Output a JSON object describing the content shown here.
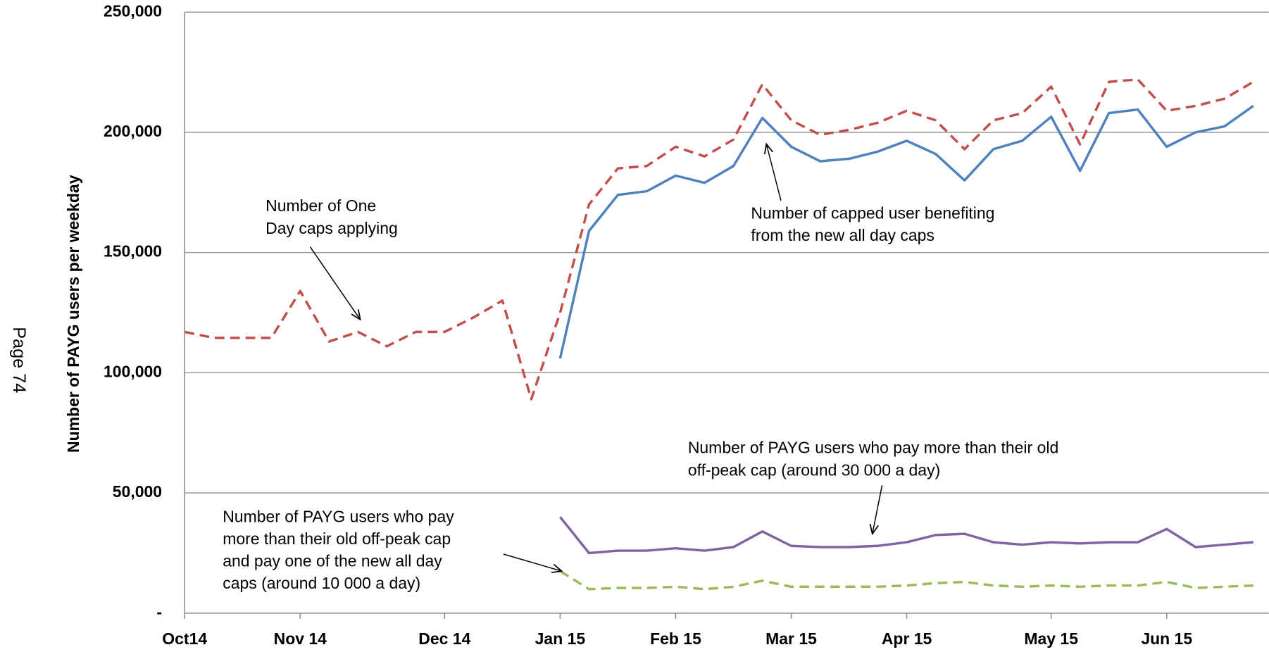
{
  "chart_data": {
    "type": "line",
    "page_label": "Page 74",
    "y_label": "Number of PAYG users per weekday",
    "categories": [
      "Oct14",
      null,
      null,
      null,
      "Nov 14",
      null,
      null,
      null,
      null,
      "Dec 14",
      null,
      null,
      null,
      "Jan 15",
      null,
      null,
      null,
      "Feb 15",
      null,
      null,
      null,
      "Mar 15",
      null,
      null,
      null,
      "Apr 15",
      null,
      null,
      null,
      null,
      "May 15",
      null,
      null,
      null,
      "Jun 15",
      null,
      null,
      null
    ],
    "series": [
      {
        "color": "#c0504d",
        "dashed": true,
        "values": [
          117000,
          114500,
          114500,
          114500,
          134000,
          113000,
          117000,
          111000,
          117000,
          117000,
          123000,
          130000,
          89000,
          125000,
          170000,
          185000,
          186000,
          194000,
          190000,
          197000,
          220000,
          205000,
          199000,
          201000,
          204000,
          209000,
          205000,
          193000,
          205000,
          208000,
          219000,
          195000,
          221000,
          222000,
          209000,
          211000,
          214000,
          221000
        ]
      },
      {
        "color": "#4f81bd",
        "dashed": false,
        "values": [
          null,
          null,
          null,
          null,
          null,
          null,
          null,
          null,
          null,
          null,
          null,
          null,
          null,
          106000,
          159000,
          174000,
          175500,
          182000,
          179000,
          186000,
          206000,
          194000,
          188000,
          189000,
          192000,
          196500,
          191000,
          180000,
          193000,
          196500,
          206500,
          184000,
          208000,
          209500,
          194000,
          200000,
          202500,
          211000
        ]
      },
      {
        "color": "#8064a2",
        "dashed": false,
        "values": [
          null,
          null,
          null,
          null,
          null,
          null,
          null,
          null,
          null,
          null,
          null,
          null,
          null,
          40000,
          25000,
          26000,
          26000,
          27000,
          26000,
          27500,
          34000,
          28000,
          27500,
          27500,
          28000,
          29500,
          32500,
          33000,
          29500,
          28500,
          29500,
          29000,
          29500,
          29500,
          35000,
          27500,
          28500,
          29500
        ]
      },
      {
        "color": "#9bbb59",
        "dashed": true,
        "values": [
          null,
          null,
          null,
          null,
          null,
          null,
          null,
          null,
          null,
          null,
          null,
          null,
          null,
          17500,
          10000,
          10500,
          10500,
          11000,
          10000,
          11000,
          13500,
          11000,
          11000,
          11000,
          11000,
          11500,
          12500,
          13000,
          11500,
          11000,
          11500,
          11000,
          11500,
          11500,
          13000,
          10500,
          11000,
          11500
        ]
      }
    ],
    "ylim": [
      0,
      250000
    ],
    "yticks": [
      {
        "value": 0,
        "label": "-"
      },
      {
        "value": 50000,
        "label": "50,000"
      },
      {
        "value": 100000,
        "label": "100,000"
      },
      {
        "value": 150000,
        "label": "150,000"
      },
      {
        "value": 200000,
        "label": "200,000"
      },
      {
        "value": 250000,
        "label": "250,000"
      }
    ],
    "grid": true,
    "annotations": [
      {
        "lines": [
          "Number of One",
          "Day caps applying"
        ]
      },
      {
        "lines": [
          "Number of capped user benefiting",
          "from the new all day caps"
        ]
      },
      {
        "lines": [
          "Number of PAYG users who pay more than their old",
          "off-peak cap (around 30 000 a day)"
        ]
      },
      {
        "lines": [
          "Number of PAYG users who pay",
          "more than their old off-peak cap",
          "and pay one of the new all day",
          "caps (around 10 000 a day)"
        ]
      }
    ]
  }
}
